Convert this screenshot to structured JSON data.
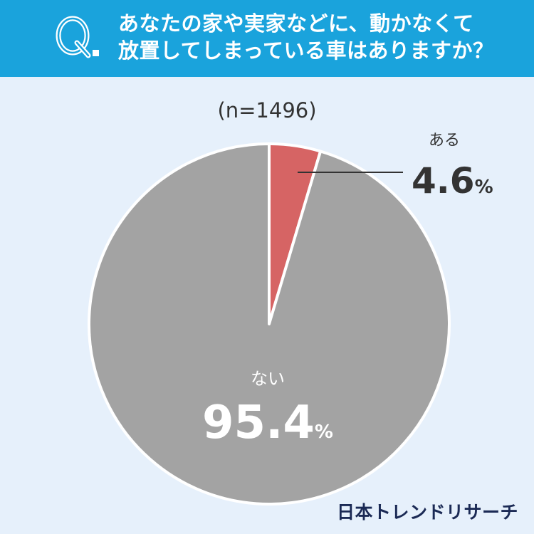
{
  "question": {
    "mark": "Q.",
    "title": "あなたの家や実家などに、動かなくて\n放置してしまっている車はありますか？"
  },
  "sample_size": "(n=1496)",
  "brand": "日本トレンドリサーチ",
  "colors": {
    "header": "#1aa3dc",
    "background": "#e6f0fb",
    "aru": "#d66464",
    "nai": "#a3a3a3"
  },
  "chart_data": {
    "type": "pie",
    "categories": [
      "ある",
      "ない"
    ],
    "values": [
      4.6,
      95.4
    ],
    "value_labels": [
      "4.6",
      "95.4"
    ],
    "unit": "%",
    "colors": [
      "#d66464",
      "#a3a3a3"
    ]
  }
}
